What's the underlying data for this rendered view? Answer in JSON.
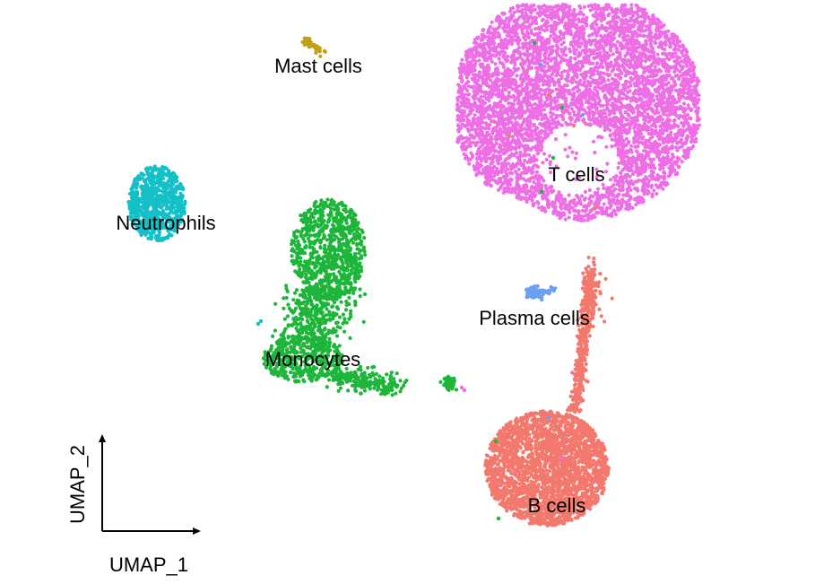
{
  "chart_data": {
    "type": "scatter",
    "xlabel": "UMAP_1",
    "ylabel": "UMAP_2",
    "clusters": [
      {
        "name": "T cells",
        "label": "T cells",
        "color": "#EE6FE5",
        "points": 5200
      },
      {
        "name": "B cells",
        "label": "B cells",
        "color": "#F3786D",
        "points": 3000
      },
      {
        "name": "Monocytes",
        "label": "Monocytes",
        "color": "#1DB53A",
        "points": 1900
      },
      {
        "name": "Neutrophils",
        "label": "Neutrophils",
        "color": "#14C0C8",
        "points": 750
      },
      {
        "name": "Plasma cells",
        "label": "Plasma cells",
        "color": "#6B9FEF",
        "points": 70
      },
      {
        "name": "Mast cells",
        "label": "Mast cells",
        "color": "#C1A018",
        "points": 45
      }
    ]
  }
}
